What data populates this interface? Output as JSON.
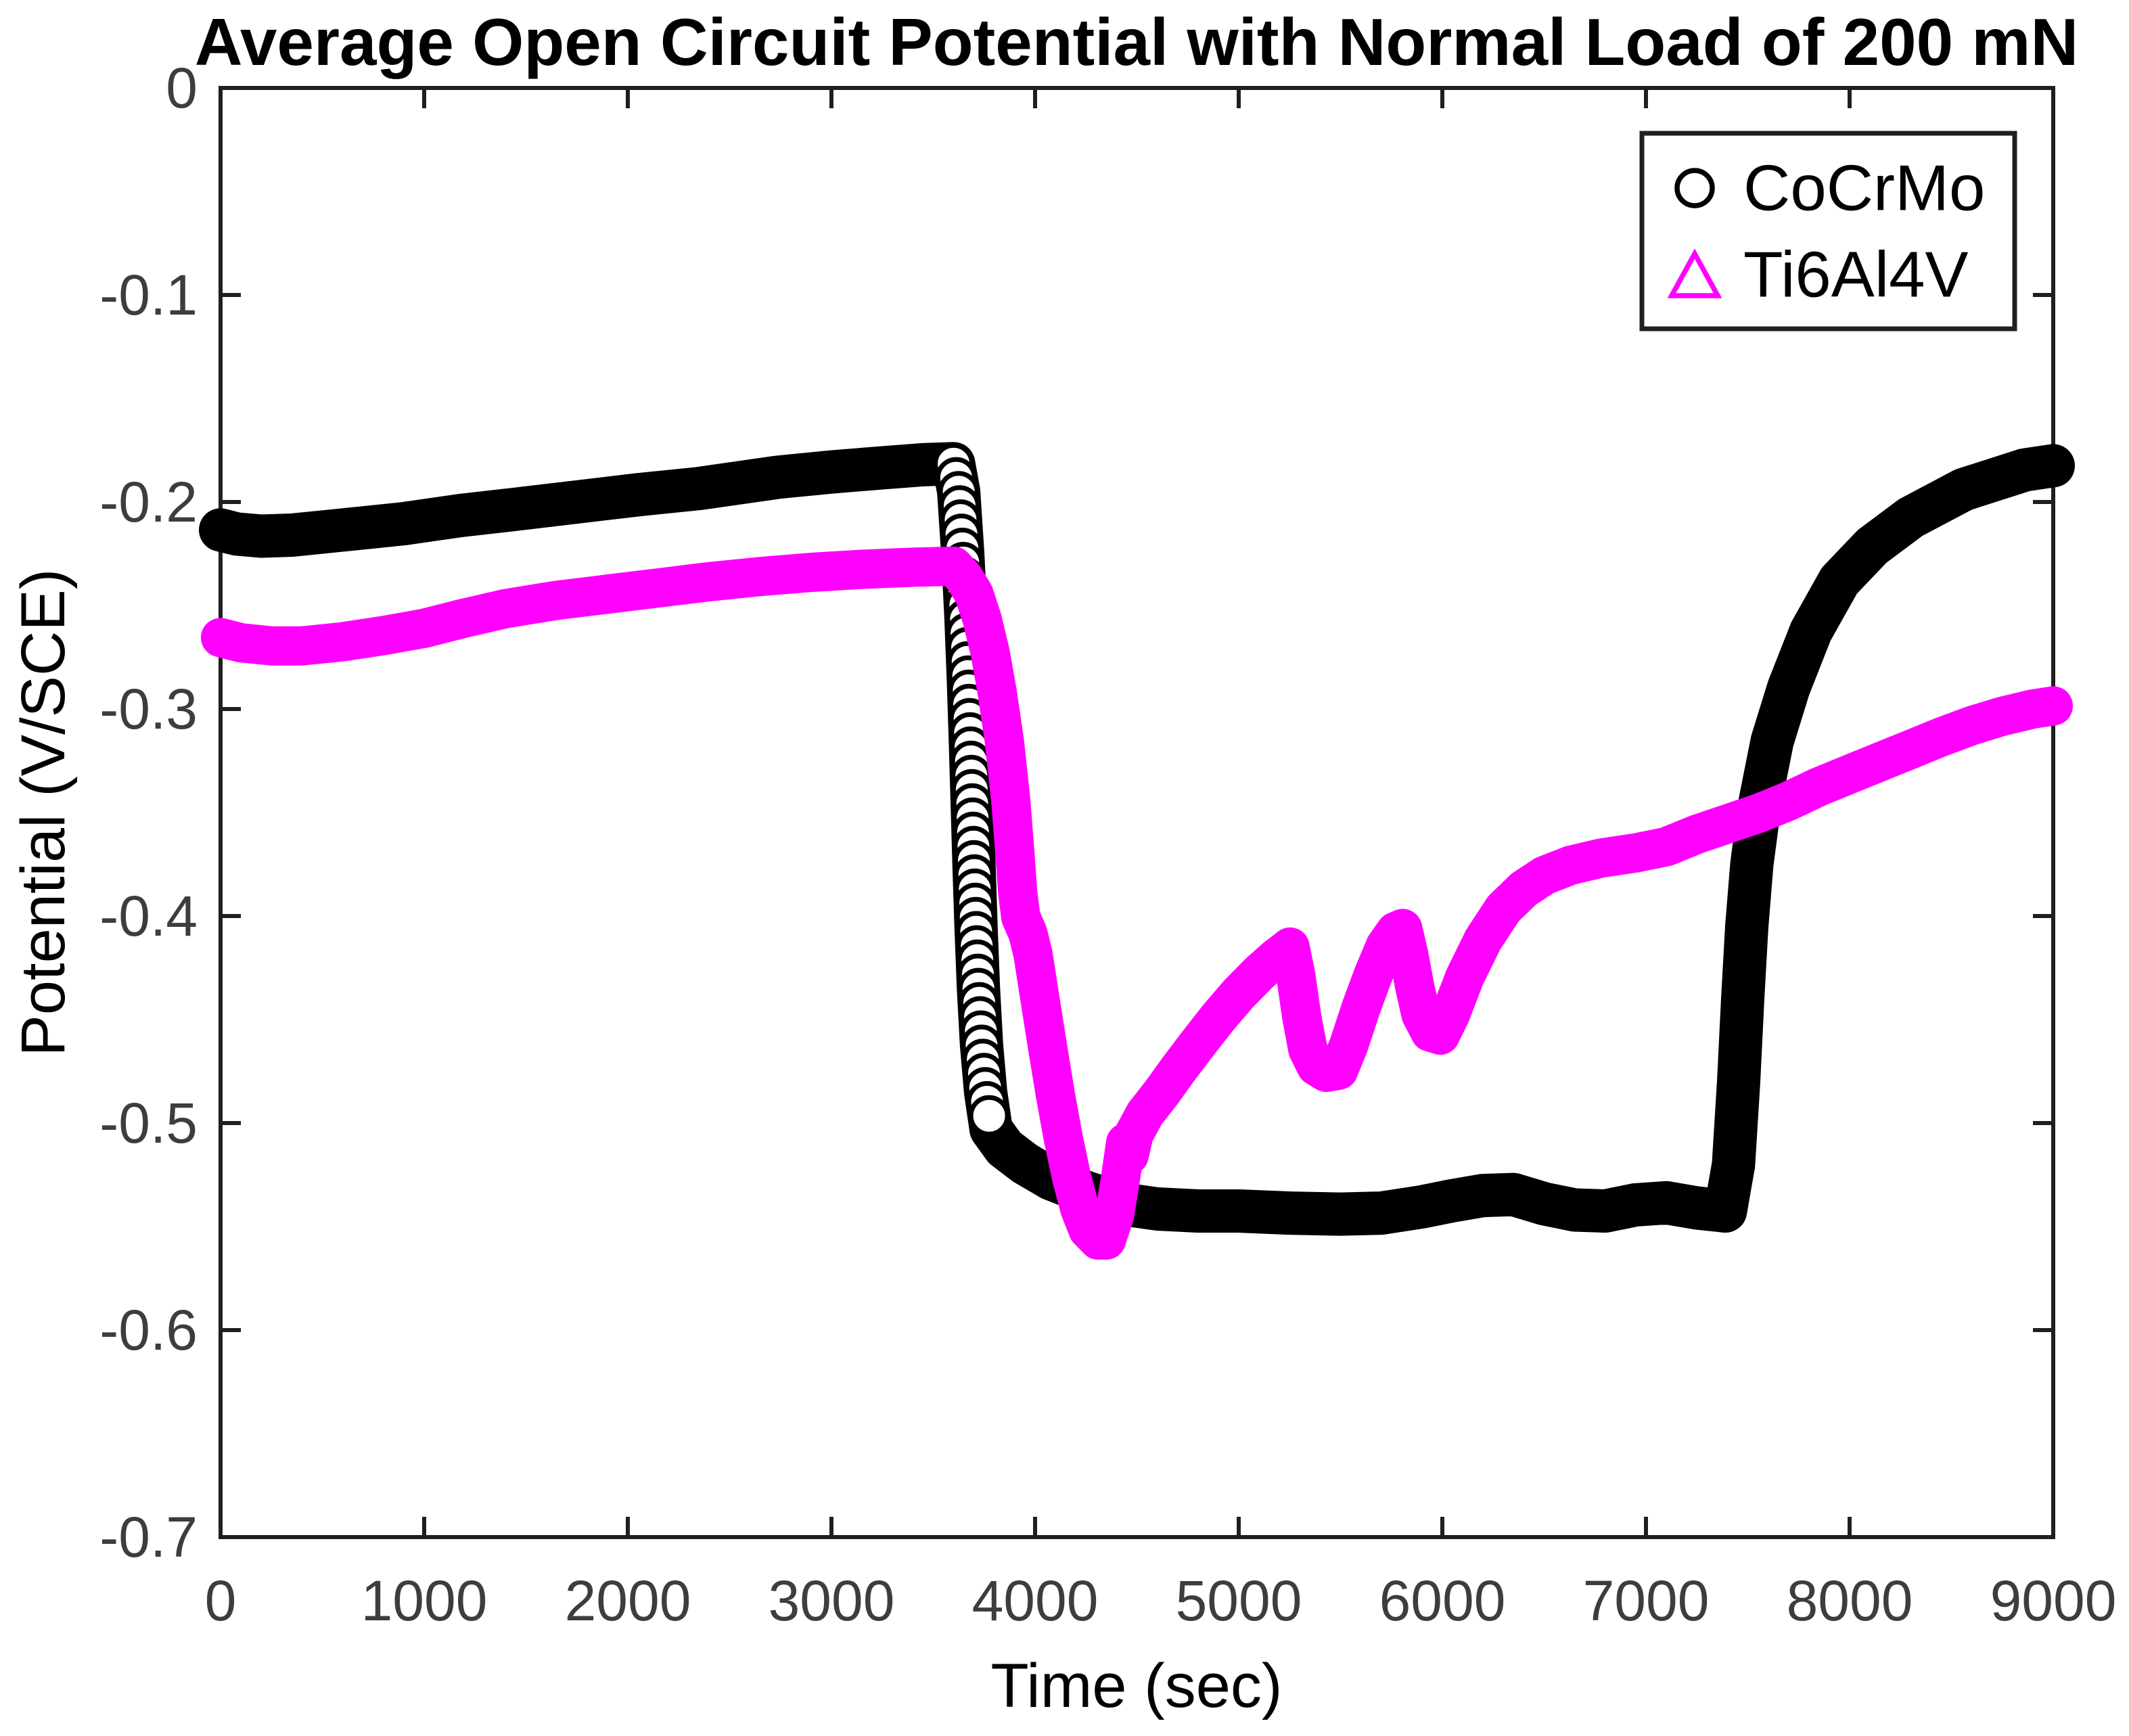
{
  "title": "Average Open Circuit Potential with Normal Load of 200 mN",
  "axes": {
    "xlabel": "Time (sec)",
    "ylabel": "Potential (V/SCE)",
    "x_tick_labels": [
      "0",
      "1000",
      "2000",
      "3000",
      "4000",
      "5000",
      "6000",
      "7000",
      "8000",
      "9000"
    ],
    "y_tick_labels": [
      "0",
      "-0.1",
      "-0.2",
      "-0.3",
      "-0.4",
      "-0.5",
      "-0.6",
      "-0.7"
    ]
  },
  "legend": {
    "items": [
      {
        "label": "CoCrMo",
        "marker": "circle-icon",
        "color": "#000000"
      },
      {
        "label": "Ti6Al4V",
        "marker": "triangle-icon",
        "color": "#ff00ff"
      }
    ]
  },
  "colors": {
    "cocrmo": "#000000",
    "ti6al4v": "#ff00ff",
    "axis_line": "#1f1f1f",
    "tick_label": "#3d3d3d",
    "title_text": "#000000",
    "background": "#ffffff"
  },
  "chart_data": {
    "type": "line",
    "title": "Average Open Circuit Potential with Normal Load of 200 mN",
    "xlabel": "Time (sec)",
    "ylabel": "Potential (V/SCE)",
    "xlim": [
      0,
      9000
    ],
    "ylim": [
      -0.7,
      0
    ],
    "x_ticks": [
      0,
      1000,
      2000,
      3000,
      4000,
      5000,
      6000,
      7000,
      8000,
      9000
    ],
    "y_ticks": [
      0,
      -0.1,
      -0.2,
      -0.3,
      -0.4,
      -0.5,
      -0.6,
      -0.7
    ],
    "grid": false,
    "legend_position": "northeast",
    "series": [
      {
        "name": "CoCrMo",
        "color": "#000000",
        "marker": "o",
        "points": [
          [
            0,
            -0.2135
          ],
          [
            80,
            -0.2155
          ],
          [
            200,
            -0.2165
          ],
          [
            350,
            -0.216
          ],
          [
            500,
            -0.2145
          ],
          [
            700,
            -0.2125
          ],
          [
            900,
            -0.2105
          ],
          [
            1180,
            -0.2065
          ],
          [
            1450,
            -0.2035
          ],
          [
            1750,
            -0.2
          ],
          [
            2050,
            -0.1965
          ],
          [
            2350,
            -0.1935
          ],
          [
            2740,
            -0.188
          ],
          [
            3000,
            -0.1855
          ],
          [
            3250,
            -0.1835
          ],
          [
            3450,
            -0.182
          ],
          [
            3600,
            -0.1815
          ],
          [
            3625,
            -0.195
          ],
          [
            3645,
            -0.225
          ],
          [
            3660,
            -0.255
          ],
          [
            3672,
            -0.285
          ],
          [
            3682,
            -0.315
          ],
          [
            3691,
            -0.345
          ],
          [
            3700,
            -0.375
          ],
          [
            3710,
            -0.405
          ],
          [
            3722,
            -0.435
          ],
          [
            3737,
            -0.462
          ],
          [
            3757,
            -0.485
          ],
          [
            3784,
            -0.503
          ],
          [
            3850,
            -0.512
          ],
          [
            3950,
            -0.5195
          ],
          [
            4080,
            -0.527
          ],
          [
            4250,
            -0.5335
          ],
          [
            4420,
            -0.539
          ],
          [
            4600,
            -0.5415
          ],
          [
            4800,
            -0.5425
          ],
          [
            5000,
            -0.5425
          ],
          [
            5250,
            -0.5435
          ],
          [
            5500,
            -0.544
          ],
          [
            5700,
            -0.5435
          ],
          [
            5900,
            -0.5405
          ],
          [
            6050,
            -0.5375
          ],
          [
            6200,
            -0.535
          ],
          [
            6350,
            -0.5345
          ],
          [
            6500,
            -0.539
          ],
          [
            6650,
            -0.542
          ],
          [
            6800,
            -0.5425
          ],
          [
            6950,
            -0.5395
          ],
          [
            7100,
            -0.5385
          ],
          [
            7250,
            -0.541
          ],
          [
            7390,
            -0.5425
          ],
          [
            7430,
            -0.52
          ],
          [
            7455,
            -0.48
          ],
          [
            7475,
            -0.44
          ],
          [
            7495,
            -0.405
          ],
          [
            7520,
            -0.375
          ],
          [
            7560,
            -0.345
          ],
          [
            7620,
            -0.3155
          ],
          [
            7700,
            -0.29
          ],
          [
            7810,
            -0.2625
          ],
          [
            7950,
            -0.238
          ],
          [
            8110,
            -0.2215
          ],
          [
            8300,
            -0.2075
          ],
          [
            8560,
            -0.194
          ],
          [
            8860,
            -0.1845
          ],
          [
            9000,
            -0.1825
          ]
        ]
      },
      {
        "name": "Ti6Al4V",
        "color": "#ff00ff",
        "marker": "^",
        "points": [
          [
            0,
            -0.2655
          ],
          [
            100,
            -0.268
          ],
          [
            250,
            -0.2695
          ],
          [
            400,
            -0.2695
          ],
          [
            600,
            -0.2675
          ],
          [
            800,
            -0.2645
          ],
          [
            1000,
            -0.261
          ],
          [
            1180,
            -0.2565
          ],
          [
            1400,
            -0.2515
          ],
          [
            1650,
            -0.2475
          ],
          [
            1900,
            -0.2445
          ],
          [
            2150,
            -0.2415
          ],
          [
            2400,
            -0.2385
          ],
          [
            2650,
            -0.236
          ],
          [
            2900,
            -0.234
          ],
          [
            3150,
            -0.2325
          ],
          [
            3400,
            -0.2315
          ],
          [
            3600,
            -0.231
          ],
          [
            3650,
            -0.2365
          ],
          [
            3700,
            -0.2445
          ],
          [
            3740,
            -0.2565
          ],
          [
            3780,
            -0.273
          ],
          [
            3815,
            -0.2925
          ],
          [
            3850,
            -0.316
          ],
          [
            3880,
            -0.3435
          ],
          [
            3900,
            -0.3685
          ],
          [
            3915,
            -0.389
          ],
          [
            3930,
            -0.4005
          ],
          [
            3965,
            -0.4085
          ],
          [
            3990,
            -0.4185
          ],
          [
            4020,
            -0.4375
          ],
          [
            4060,
            -0.4625
          ],
          [
            4100,
            -0.4865
          ],
          [
            4140,
            -0.508
          ],
          [
            4180,
            -0.5265
          ],
          [
            4220,
            -0.5415
          ],
          [
            4260,
            -0.5515
          ],
          [
            4310,
            -0.5565
          ],
          [
            4350,
            -0.5565
          ],
          [
            4390,
            -0.5445
          ],
          [
            4420,
            -0.5265
          ],
          [
            4445,
            -0.5095
          ],
          [
            4462,
            -0.5155
          ],
          [
            4485,
            -0.5055
          ],
          [
            4540,
            -0.4955
          ],
          [
            4620,
            -0.4855
          ],
          [
            4700,
            -0.4745
          ],
          [
            4800,
            -0.4615
          ],
          [
            4900,
            -0.449
          ],
          [
            5000,
            -0.4375
          ],
          [
            5100,
            -0.4275
          ],
          [
            5180,
            -0.4205
          ],
          [
            5252,
            -0.415
          ],
          [
            5280,
            -0.4285
          ],
          [
            5310,
            -0.449
          ],
          [
            5340,
            -0.4645
          ],
          [
            5380,
            -0.4725
          ],
          [
            5430,
            -0.4755
          ],
          [
            5490,
            -0.4745
          ],
          [
            5540,
            -0.4625
          ],
          [
            5600,
            -0.4445
          ],
          [
            5660,
            -0.4285
          ],
          [
            5720,
            -0.4145
          ],
          [
            5770,
            -0.4075
          ],
          [
            5805,
            -0.406
          ],
          [
            5835,
            -0.4185
          ],
          [
            5865,
            -0.4345
          ],
          [
            5895,
            -0.4475
          ],
          [
            5940,
            -0.456
          ],
          [
            5990,
            -0.4575
          ],
          [
            6040,
            -0.4475
          ],
          [
            6110,
            -0.4295
          ],
          [
            6200,
            -0.4115
          ],
          [
            6300,
            -0.3965
          ],
          [
            6400,
            -0.387
          ],
          [
            6500,
            -0.3805
          ],
          [
            6630,
            -0.3755
          ],
          [
            6780,
            -0.372
          ],
          [
            6950,
            -0.3695
          ],
          [
            7100,
            -0.3665
          ],
          [
            7250,
            -0.3605
          ],
          [
            7400,
            -0.3555
          ],
          [
            7550,
            -0.3505
          ],
          [
            7700,
            -0.3445
          ],
          [
            7850,
            -0.3375
          ],
          [
            8000,
            -0.3315
          ],
          [
            8150,
            -0.3255
          ],
          [
            8300,
            -0.3195
          ],
          [
            8450,
            -0.3135
          ],
          [
            8600,
            -0.308
          ],
          [
            8750,
            -0.3035
          ],
          [
            8900,
            -0.3
          ],
          [
            9000,
            -0.2985
          ]
        ]
      }
    ],
    "marker_stack_visible": {
      "series": "CoCrMo",
      "t_window": [
        3605,
        3800
      ],
      "description_of_pixels": "open circle markers individually visible along the steep potential drop"
    }
  }
}
